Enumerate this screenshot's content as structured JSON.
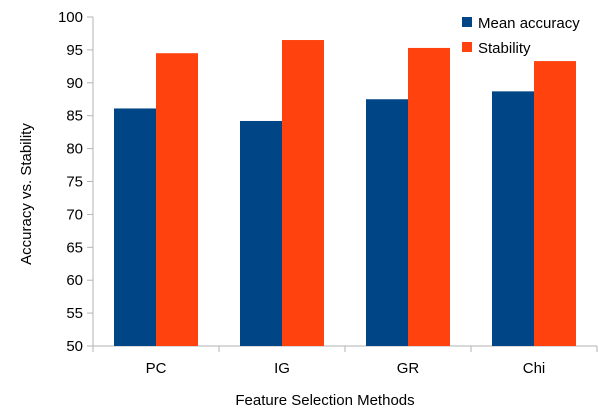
{
  "chart_data": {
    "type": "bar",
    "title": "",
    "xlabel": "Feature Selection Methods",
    "ylabel": "Accuracy vs. Stability",
    "categories": [
      "PC",
      "IG",
      "GR",
      "Chi"
    ],
    "series": [
      {
        "name": "Mean accuracy",
        "color": "#004586",
        "values": [
          86.1,
          84.2,
          87.5,
          88.7
        ]
      },
      {
        "name": "Stability",
        "color": "#ff420e",
        "values": [
          94.5,
          96.5,
          95.3,
          93.3
        ]
      }
    ],
    "ylim": [
      50,
      100
    ],
    "yticks": [
      "50",
      "55",
      "60",
      "65",
      "70",
      "75",
      "80",
      "85",
      "90",
      "95",
      "100"
    ],
    "grid": false,
    "legend_position": "top-right"
  }
}
